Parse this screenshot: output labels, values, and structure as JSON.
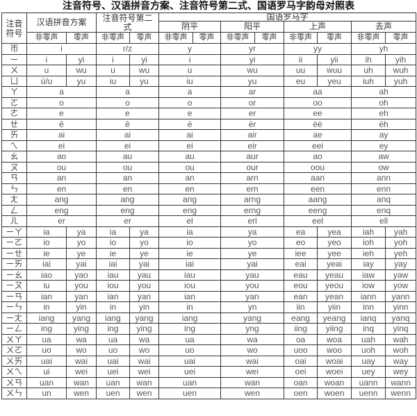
{
  "title": "注音符号、汉语拼音方案、注音符号第二式、国语罗马字韵母对照表",
  "headers": {
    "zhuyin": "注音符号",
    "pinyin": "汉语拼音方案",
    "second": "注音符号第二式",
    "gwoyeu": "国语罗马字",
    "tones": [
      "阴平",
      "阳平",
      "上声",
      "去声"
    ],
    "nonzero": "非零声",
    "zero": "零声"
  },
  "rows": [
    {
      "merged": true,
      "cells": [
        "帀",
        "i",
        "r/z",
        "y",
        "yr",
        "yy",
        "yh"
      ]
    },
    {
      "merged": false,
      "cells": [
        "ㄧ",
        "i",
        "yi",
        "i",
        "yi",
        "i",
        "yi",
        "ii",
        "yii",
        "ih",
        "yih"
      ]
    },
    {
      "merged": false,
      "cells": [
        "ㄨ",
        "u",
        "wu",
        "u",
        "wu",
        "u",
        "wu",
        "uu",
        "wuu",
        "uh",
        "wuh"
      ]
    },
    {
      "merged": false,
      "cells": [
        "ㄩ",
        "ü/u",
        "yu",
        "iu",
        "yu",
        "iu",
        "yu",
        "eu",
        "yeu",
        "iuh",
        "yuh"
      ]
    },
    {
      "merged": true,
      "cells": [
        "ㄚ",
        "a",
        "a",
        "a",
        "ar",
        "aa",
        "ah"
      ]
    },
    {
      "merged": true,
      "cells": [
        "ㄛ",
        "o",
        "o",
        "o",
        "or",
        "oo",
        "oh"
      ]
    },
    {
      "merged": true,
      "cells": [
        "ㄜ",
        "e",
        "e",
        "e",
        "er",
        "ee",
        "eh"
      ]
    },
    {
      "merged": true,
      "cells": [
        "ㄝ",
        "ê",
        "ê",
        "è",
        "èr",
        "èè",
        "èh"
      ]
    },
    {
      "merged": true,
      "cells": [
        "ㄞ",
        "ai",
        "ai",
        "ai",
        "air",
        "ae",
        "ay"
      ]
    },
    {
      "merged": true,
      "cells": [
        "ㄟ",
        "ei",
        "ei",
        "ei",
        "eir",
        "eei",
        "ey"
      ]
    },
    {
      "merged": true,
      "cells": [
        "ㄠ",
        "ao",
        "au",
        "au",
        "aur",
        "ao",
        "aw"
      ]
    },
    {
      "merged": true,
      "cells": [
        "ㄡ",
        "ou",
        "ou",
        "ou",
        "our",
        "oou",
        "ow"
      ]
    },
    {
      "merged": true,
      "cells": [
        "ㄢ",
        "an",
        "an",
        "an",
        "arn",
        "aan",
        "ann"
      ]
    },
    {
      "merged": true,
      "cells": [
        "ㄣ",
        "en",
        "en",
        "en",
        "ern",
        "een",
        "enn"
      ]
    },
    {
      "merged": true,
      "cells": [
        "ㄤ",
        "ang",
        "ang",
        "ang",
        "arng",
        "aang",
        "anq"
      ]
    },
    {
      "merged": true,
      "cells": [
        "ㄥ",
        "eng",
        "eng",
        "eng",
        "erng",
        "eeng",
        "enq"
      ]
    },
    {
      "merged": true,
      "cells": [
        "ㄦ",
        "er",
        "er",
        "el",
        "erl",
        "eel",
        "ell"
      ]
    },
    {
      "merged": false,
      "cells": [
        "ㄧㄚ",
        "ia",
        "ya",
        "ia",
        "ya",
        "ia",
        "ya",
        "ea",
        "yea",
        "iah",
        "yah"
      ]
    },
    {
      "merged": false,
      "cells": [
        "ㄧㄛ",
        "io",
        "yo",
        "io",
        "yo",
        "io",
        "yo",
        "eo",
        "yeo",
        "ioh",
        "yoh"
      ]
    },
    {
      "merged": false,
      "cells": [
        "ㄧㄝ",
        "ie",
        "ye",
        "ie",
        "ye",
        "ie",
        "ye",
        "iee",
        "yee",
        "ieh",
        "yeh"
      ]
    },
    {
      "merged": false,
      "cells": [
        "ㄧㄞ",
        "iai",
        "yai",
        "iai",
        "yai",
        "iai",
        "yai",
        "eai",
        "yeai",
        "iay",
        "yay"
      ]
    },
    {
      "merged": false,
      "cells": [
        "ㄧㄠ",
        "iao",
        "yao",
        "iau",
        "yau",
        "iau",
        "yau",
        "eau",
        "yeau",
        "iaw",
        "yaw"
      ]
    },
    {
      "merged": false,
      "cells": [
        "ㄧㄡ",
        "iu",
        "you",
        "iou",
        "you",
        "iou",
        "you",
        "eou",
        "yeou",
        "iow",
        "yow"
      ]
    },
    {
      "merged": false,
      "cells": [
        "ㄧㄢ",
        "ian",
        "yan",
        "ian",
        "yan",
        "ian",
        "yan",
        "ean",
        "yean",
        "iann",
        "yann"
      ]
    },
    {
      "merged": false,
      "cells": [
        "ㄧㄣ",
        "in",
        "yin",
        "in",
        "yin",
        "in",
        "yn",
        "iin",
        "yiin",
        "inn",
        "yinn"
      ]
    },
    {
      "merged": false,
      "cells": [
        "ㄧㄤ",
        "iang",
        "yang",
        "iang",
        "yang",
        "iang",
        "yang",
        "eang",
        "yeang",
        "ianq",
        "yanq"
      ]
    },
    {
      "merged": false,
      "cells": [
        "ㄧㄥ",
        "ing",
        "ying",
        "ing",
        "ying",
        "ing",
        "yng",
        "iing",
        "yiing",
        "inq",
        "yinq"
      ]
    },
    {
      "merged": false,
      "cells": [
        "ㄨㄚ",
        "ua",
        "wa",
        "ua",
        "wa",
        "ua",
        "wa",
        "oa",
        "woa",
        "uah",
        "wah"
      ]
    },
    {
      "merged": false,
      "cells": [
        "ㄨㄛ",
        "uo",
        "wo",
        "uo",
        "wo",
        "uo",
        "wo",
        "uoo",
        "woo",
        "uoh",
        "woh"
      ]
    },
    {
      "merged": false,
      "cells": [
        "ㄨㄞ",
        "uai",
        "wai",
        "uai",
        "wai",
        "uai",
        "wai",
        "oai",
        "woai",
        "uay",
        "way"
      ]
    },
    {
      "merged": false,
      "cells": [
        "ㄨㄟ",
        "ui",
        "wei",
        "uei",
        "wei",
        "uei",
        "wei",
        "oei",
        "woei",
        "uey",
        "wey"
      ]
    },
    {
      "merged": false,
      "cells": [
        "ㄨㄢ",
        "uan",
        "wan",
        "uan",
        "wan",
        "uan",
        "wan",
        "oan",
        "woan",
        "uann",
        "wann"
      ]
    },
    {
      "merged": false,
      "cells": [
        "ㄨㄣ",
        "un",
        "wen",
        "uen",
        "wen",
        "uen",
        "wen",
        "oen",
        "woen",
        "uenn",
        "wenn"
      ]
    }
  ]
}
